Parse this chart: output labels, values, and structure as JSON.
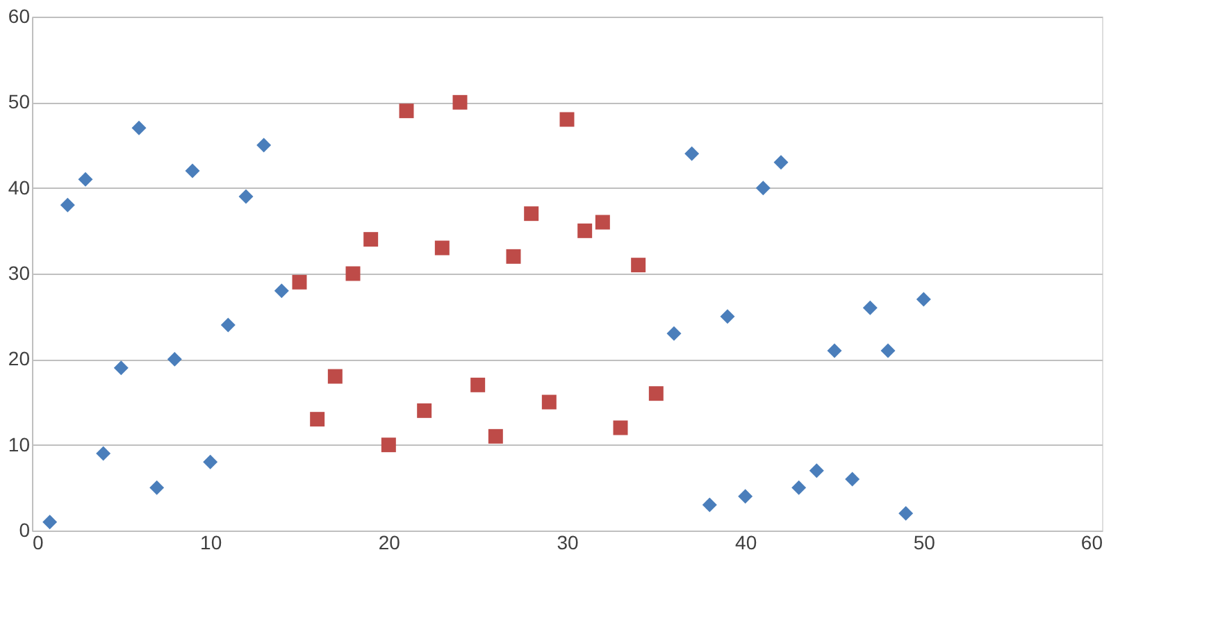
{
  "chart_data": {
    "type": "scatter",
    "series": [
      {
        "color": "#4a7ebb",
        "marker": "diamond",
        "x": [
          1,
          2,
          3,
          4,
          5,
          6,
          7,
          8,
          9,
          10,
          11,
          12,
          13,
          14,
          36,
          37,
          38,
          39,
          40,
          41,
          42,
          43,
          44,
          45,
          46,
          47,
          48,
          49,
          50
        ],
        "values": [
          1,
          38,
          41,
          9,
          19,
          47,
          5,
          20,
          42,
          8,
          24,
          39,
          45,
          28,
          23,
          44,
          3,
          25,
          4,
          40,
          43,
          5,
          7,
          21,
          6,
          26,
          21,
          2,
          27
        ]
      },
      {
        "color": "#be4b48",
        "marker": "square",
        "x": [
          15,
          16,
          17,
          18,
          19,
          20,
          21,
          22,
          23,
          24,
          25,
          26,
          27,
          28,
          29,
          30,
          31,
          32,
          33,
          34,
          35
        ],
        "values": [
          29,
          13,
          18,
          30,
          34,
          10,
          49,
          14,
          33,
          50,
          17,
          11,
          32,
          37,
          15,
          48,
          35,
          36,
          12,
          31,
          16
        ]
      }
    ],
    "xlim": [
      0,
      60
    ],
    "xticks": [
      0,
      10,
      20,
      30,
      40,
      50,
      60
    ],
    "ylim": [
      0,
      60
    ],
    "yticks": [
      0,
      10,
      20,
      30,
      40,
      50,
      60
    ],
    "grid": "y"
  }
}
